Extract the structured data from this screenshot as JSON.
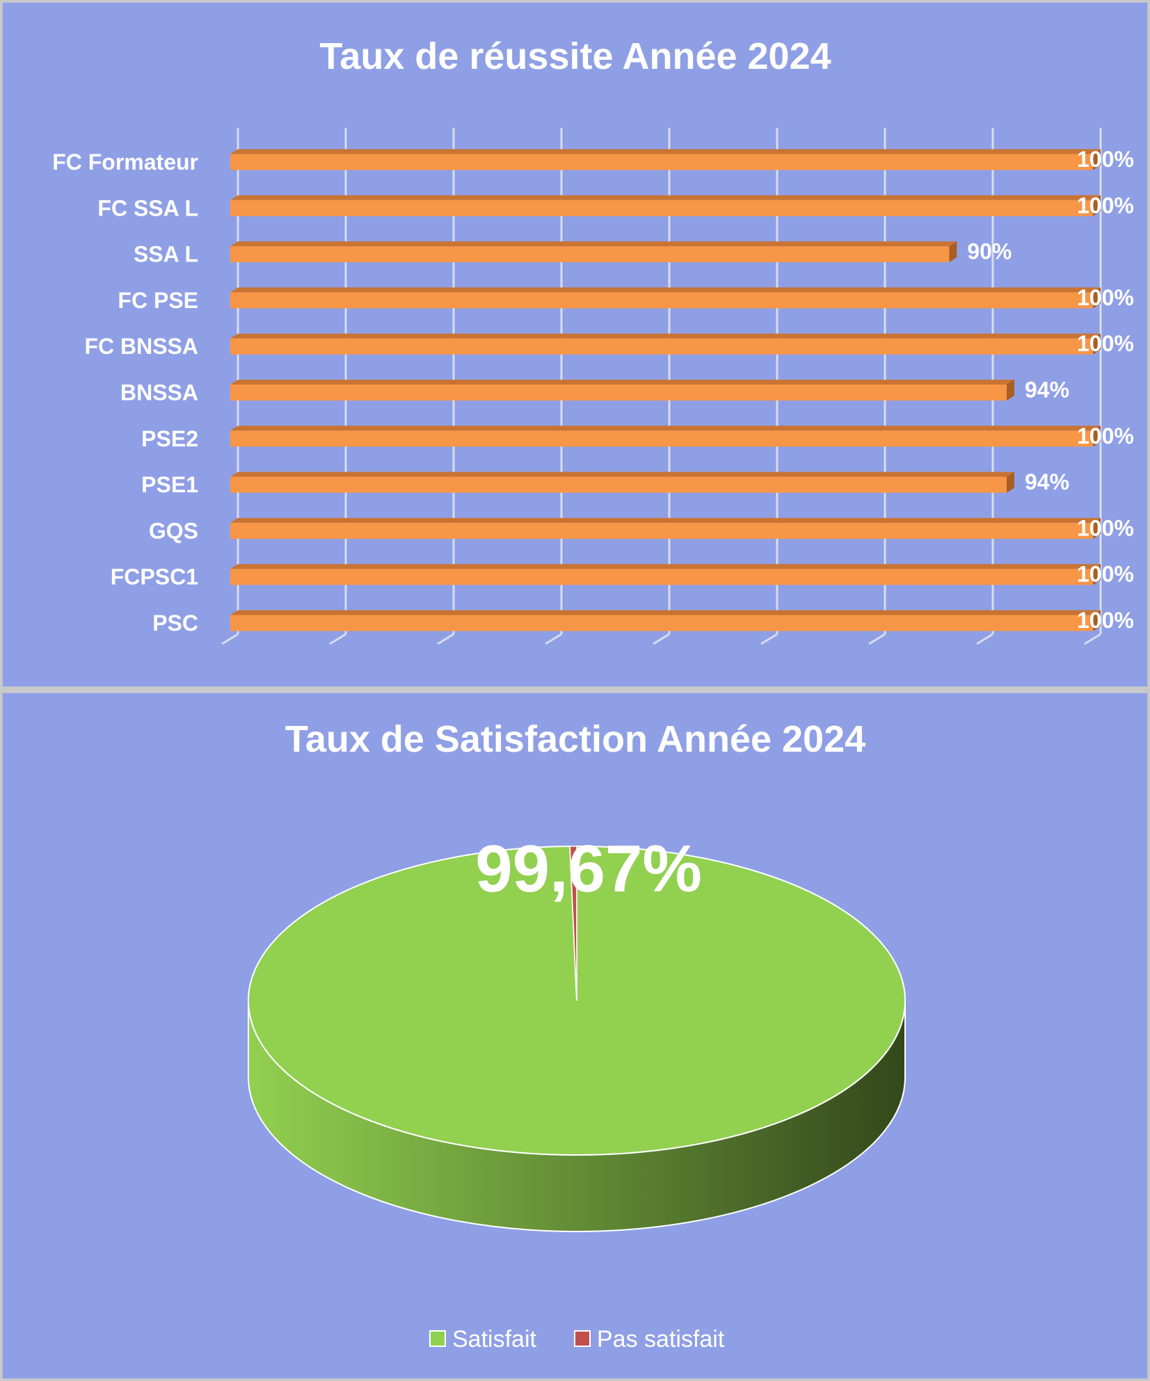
{
  "colors": {
    "background": "#8f9fe5",
    "bar_face": "#f79646",
    "bar_top": "#c97432",
    "bar_end": "#a85e24",
    "grid": "#d9dcee",
    "satisfied": "#92d050",
    "satisfied_side_dark": "#33481b",
    "not_satisfied": "#c0504d"
  },
  "chart_data": [
    {
      "type": "bar",
      "orientation": "horizontal",
      "title": "Taux de réussite Année 2024",
      "categories": [
        "FC Formateur",
        "FC SSA L",
        "SSA L",
        "FC PSE",
        "FC BNSSA",
        "BNSSA",
        "PSE2",
        "PSE1",
        "GQS",
        "FCPSC1",
        "PSC"
      ],
      "values": [
        100,
        100,
        90,
        100,
        100,
        94,
        100,
        94,
        100,
        100,
        100
      ],
      "value_labels": [
        "100%",
        "100%",
        "90%",
        "100%",
        "100%",
        "94%",
        "100%",
        "94%",
        "100%",
        "100%",
        "100%"
      ],
      "xlim": [
        40,
        100
      ],
      "grid": true,
      "three_d": true
    },
    {
      "type": "pie",
      "three_d": true,
      "title": "Taux de Satisfaction Année 2024",
      "labels": [
        "Satisfait",
        "Pas satisfait"
      ],
      "values": [
        99.67,
        0.33
      ],
      "data_label": "99,67%",
      "legend": "bottom"
    }
  ]
}
